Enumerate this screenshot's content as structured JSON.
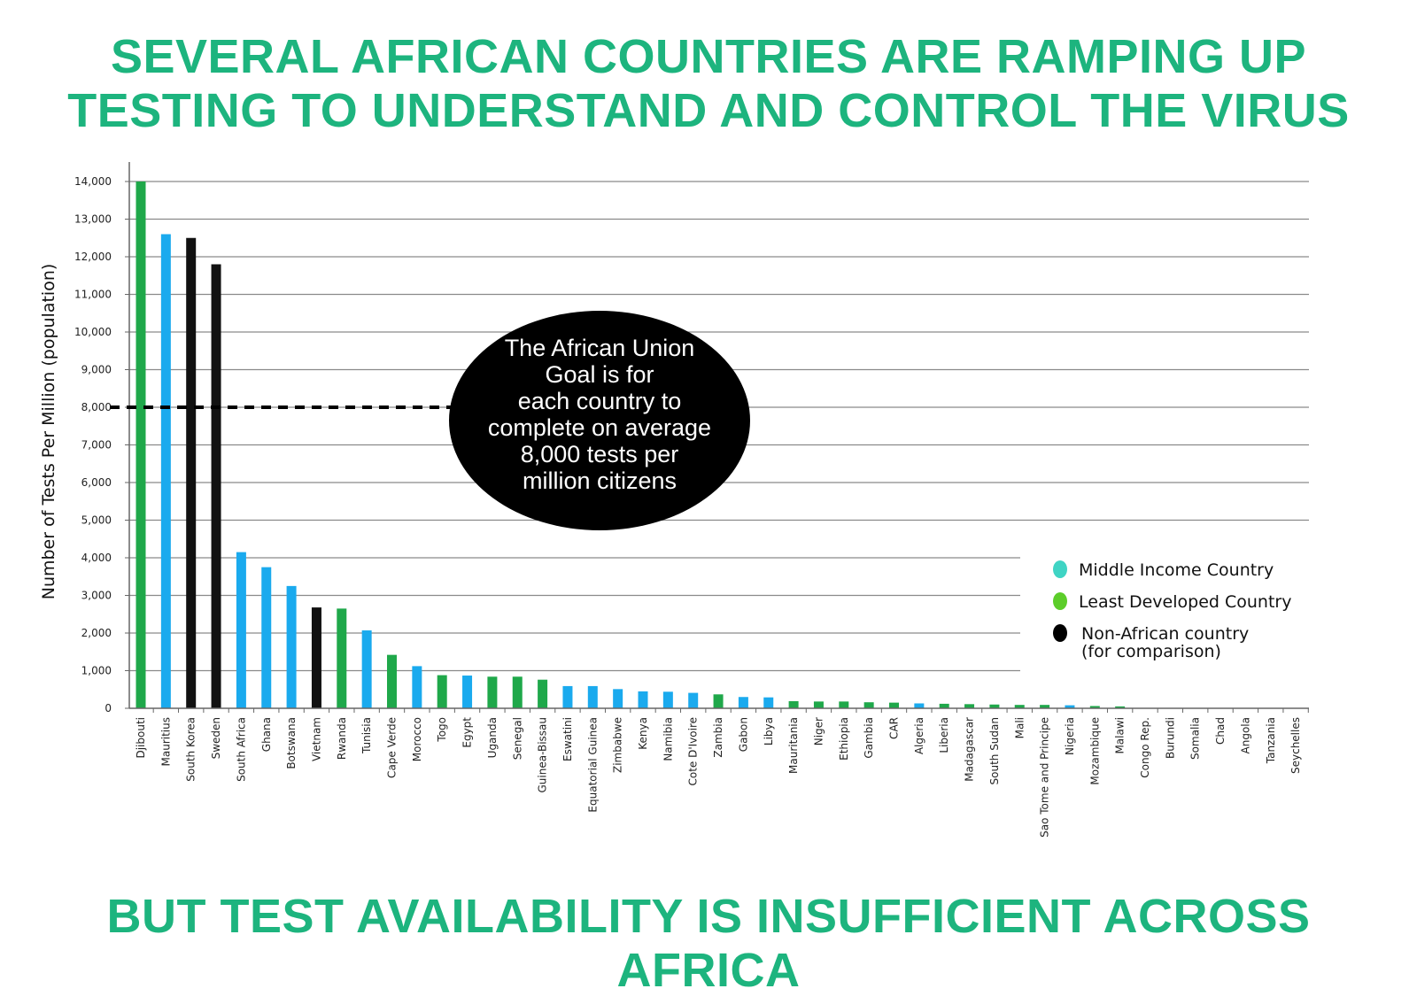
{
  "header": {
    "title_line1": "SEVERAL AFRICAN COUNTRIES ARE RAMPING UP",
    "title_line2": "TESTING TO UNDERSTAND AND CONTROL THE VIRUS"
  },
  "footer": {
    "line1": "BUT TEST AVAILABILITY IS INSUFFICIENT ACROSS",
    "line2": "AFRICA"
  },
  "chart_data": {
    "type": "bar",
    "ylabel": "Number of Tests Per Million (population)",
    "xlabel": "",
    "ylim": [
      0,
      14000
    ],
    "yticks": [
      {
        "value": 0,
        "label": "0"
      },
      {
        "value": 1000,
        "label": "1,000"
      },
      {
        "value": 2000,
        "label": "2,000"
      },
      {
        "value": 3000,
        "label": "3,000"
      },
      {
        "value": 4000,
        "label": "4,000"
      },
      {
        "value": 5000,
        "label": "5,000"
      },
      {
        "value": 6000,
        "label": "6,000"
      },
      {
        "value": 7000,
        "label": "7,000"
      },
      {
        "value": 8000,
        "label": "8,000"
      },
      {
        "value": 9000,
        "label": "9,000"
      },
      {
        "value": 10000,
        "label": "10,000"
      },
      {
        "value": 11000,
        "label": "11,000"
      },
      {
        "value": 12000,
        "label": "12,000"
      },
      {
        "value": 13000,
        "label": "13,000"
      },
      {
        "value": 14000,
        "label": "14,000"
      }
    ],
    "grid": true,
    "colors": {
      "middle": "#1aaaee",
      "least": "#1fa84a",
      "non_african": "#111111"
    },
    "bars": [
      {
        "category": "Djibouti",
        "value": 14000,
        "group": "least"
      },
      {
        "category": "Mauritius",
        "value": 12600,
        "group": "middle"
      },
      {
        "category": "South Korea",
        "value": 12500,
        "group": "non_african"
      },
      {
        "category": "Sweden",
        "value": 11800,
        "group": "non_african"
      },
      {
        "category": "South Africa",
        "value": 4150,
        "group": "middle"
      },
      {
        "category": "Ghana",
        "value": 3750,
        "group": "middle"
      },
      {
        "category": "Botswana",
        "value": 3250,
        "group": "middle"
      },
      {
        "category": "Vietnam",
        "value": 2680,
        "group": "non_african"
      },
      {
        "category": "Rwanda",
        "value": 2650,
        "group": "least"
      },
      {
        "category": "Tunisia",
        "value": 2070,
        "group": "middle"
      },
      {
        "category": "Cape Verde",
        "value": 1420,
        "group": "least"
      },
      {
        "category": "Morocco",
        "value": 1120,
        "group": "middle"
      },
      {
        "category": "Togo",
        "value": 880,
        "group": "least"
      },
      {
        "category": "Egypt",
        "value": 870,
        "group": "middle"
      },
      {
        "category": "Uganda",
        "value": 840,
        "group": "least"
      },
      {
        "category": "Senegal",
        "value": 840,
        "group": "least"
      },
      {
        "category": "Guinea-Bissau",
        "value": 760,
        "group": "least"
      },
      {
        "category": "Eswatini",
        "value": 590,
        "group": "middle"
      },
      {
        "category": "Equatorial Guinea",
        "value": 590,
        "group": "middle"
      },
      {
        "category": "Zimbabwe",
        "value": 510,
        "group": "middle"
      },
      {
        "category": "Kenya",
        "value": 450,
        "group": "middle"
      },
      {
        "category": "Namibia",
        "value": 440,
        "group": "middle"
      },
      {
        "category": "Cote D'Ivoire",
        "value": 410,
        "group": "middle"
      },
      {
        "category": "Zambia",
        "value": 370,
        "group": "least"
      },
      {
        "category": "Gabon",
        "value": 300,
        "group": "middle"
      },
      {
        "category": "Libya",
        "value": 290,
        "group": "middle"
      },
      {
        "category": "Mauritania",
        "value": 190,
        "group": "least"
      },
      {
        "category": "Niger",
        "value": 180,
        "group": "least"
      },
      {
        "category": "Ethiopia",
        "value": 180,
        "group": "least"
      },
      {
        "category": "Gambia",
        "value": 160,
        "group": "least"
      },
      {
        "category": "CAR",
        "value": 150,
        "group": "least"
      },
      {
        "category": "Algeria",
        "value": 130,
        "group": "middle"
      },
      {
        "category": "Liberia",
        "value": 120,
        "group": "least"
      },
      {
        "category": "Madagascar",
        "value": 110,
        "group": "least"
      },
      {
        "category": "South Sudan",
        "value": 100,
        "group": "least"
      },
      {
        "category": "Mali",
        "value": 90,
        "group": "least"
      },
      {
        "category": "Sao Tome and Principe",
        "value": 90,
        "group": "least"
      },
      {
        "category": "Nigeria",
        "value": 80,
        "group": "middle"
      },
      {
        "category": "Mozambique",
        "value": 60,
        "group": "least"
      },
      {
        "category": "Malawi",
        "value": 50,
        "group": "least"
      },
      {
        "category": "Congo Rep.",
        "value": 0,
        "group": "middle"
      },
      {
        "category": "Burundi",
        "value": 0,
        "group": "least"
      },
      {
        "category": "Somalia",
        "value": 0,
        "group": "least"
      },
      {
        "category": "Chad",
        "value": 0,
        "group": "least"
      },
      {
        "category": "Angola",
        "value": 0,
        "group": "least"
      },
      {
        "category": "Tanzania",
        "value": 0,
        "group": "least"
      },
      {
        "category": "Seychelles",
        "value": 0,
        "group": "middle"
      }
    ],
    "goal_line": {
      "value": 8000
    },
    "annotation": {
      "lines": [
        "The African Union",
        "Goal is for",
        "each country to",
        "complete on average",
        "8,000 tests per",
        "million citizens"
      ]
    },
    "legend": {
      "placement": "right",
      "items": [
        {
          "label": "Middle Income Country",
          "color": "#3fd4c4"
        },
        {
          "label": "Least  Developed Country",
          "color": "#5ccd2a"
        },
        {
          "label": "Non-African country",
          "sub": "(for comparison)",
          "color": "#000000"
        }
      ]
    }
  }
}
